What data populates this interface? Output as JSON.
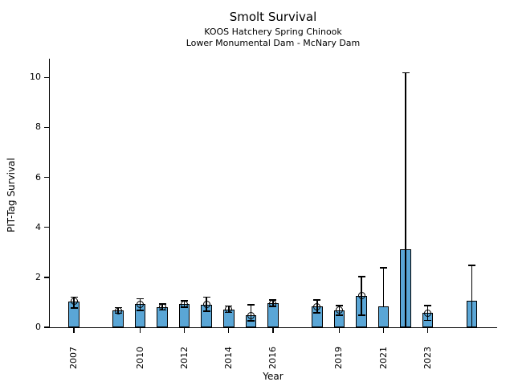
{
  "header": {
    "title": "Smolt Survival",
    "subtitle1": "KOOS Hatchery Spring Chinook",
    "subtitle2": "Lower Monumental Dam - McNary Dam"
  },
  "chart_data": {
    "type": "bar",
    "title": "Smolt Survival",
    "subtitles": [
      "KOOS Hatchery Spring Chinook",
      "Lower Monumental Dam - McNary Dam"
    ],
    "xlabel": "Year",
    "ylabel": "PIT-Tag Survival",
    "ylim": [
      0,
      10.8
    ],
    "xlim": [
      2005.9,
      2026.2
    ],
    "yticks": [
      0,
      2,
      4,
      6,
      8,
      10
    ],
    "xticks": [
      2007,
      2010,
      2012,
      2014,
      2016,
      2019,
      2021,
      2023
    ],
    "grid": false,
    "legend": null,
    "bar_color": "#5aa6d6",
    "bar_edge_color": "#000000",
    "error_bar_color": "#000000",
    "series": [
      {
        "year": 2007,
        "value": 1.03,
        "err_low": 0.77,
        "err_high": 1.21,
        "marker": true,
        "cap_low": true
      },
      {
        "year": 2009,
        "value": 0.66,
        "err_low": 0.57,
        "err_high": 0.79,
        "marker": true,
        "cap_low": true
      },
      {
        "year": 2010,
        "value": 0.92,
        "err_low": 0.68,
        "err_high": 1.14,
        "marker": true,
        "cap_low": true
      },
      {
        "year": 2011,
        "value": 0.82,
        "err_low": 0.69,
        "err_high": 0.94,
        "marker": true,
        "cap_low": true
      },
      {
        "year": 2012,
        "value": 0.93,
        "err_low": 0.8,
        "err_high": 1.07,
        "marker": true,
        "cap_low": true
      },
      {
        "year": 2013,
        "value": 0.91,
        "err_low": 0.65,
        "err_high": 1.2,
        "marker": true,
        "cap_low": true
      },
      {
        "year": 2014,
        "value": 0.71,
        "err_low": 0.6,
        "err_high": 0.85,
        "marker": true,
        "cap_low": true
      },
      {
        "year": 2015,
        "value": 0.48,
        "err_low": 0.25,
        "err_high": 0.9,
        "marker": true,
        "cap_low": true
      },
      {
        "year": 2016,
        "value": 0.95,
        "err_low": 0.84,
        "err_high": 1.09,
        "marker": true,
        "cap_low": true
      },
      {
        "year": 2018,
        "value": 0.83,
        "err_low": 0.58,
        "err_high": 1.09,
        "marker": true,
        "cap_low": true
      },
      {
        "year": 2019,
        "value": 0.68,
        "err_low": 0.49,
        "err_high": 0.87,
        "marker": true,
        "cap_low": true
      },
      {
        "year": 2020,
        "value": 1.26,
        "err_low": 0.49,
        "err_high": 2.03,
        "marker": true,
        "cap_low": true
      },
      {
        "year": 2021,
        "value": 0.83,
        "err_low": 0.83,
        "err_high": 2.38,
        "marker": false,
        "cap_low": false
      },
      {
        "year": 2022,
        "value": 3.11,
        "err_low": 0.0,
        "err_high": 10.18,
        "marker": false,
        "cap_low": false
      },
      {
        "year": 2023,
        "value": 0.57,
        "err_low": 0.28,
        "err_high": 0.87,
        "marker": true,
        "cap_low": true
      },
      {
        "year": 2025,
        "value": 1.05,
        "err_low": 0.0,
        "err_high": 2.48,
        "marker": false,
        "cap_low": false
      }
    ]
  }
}
